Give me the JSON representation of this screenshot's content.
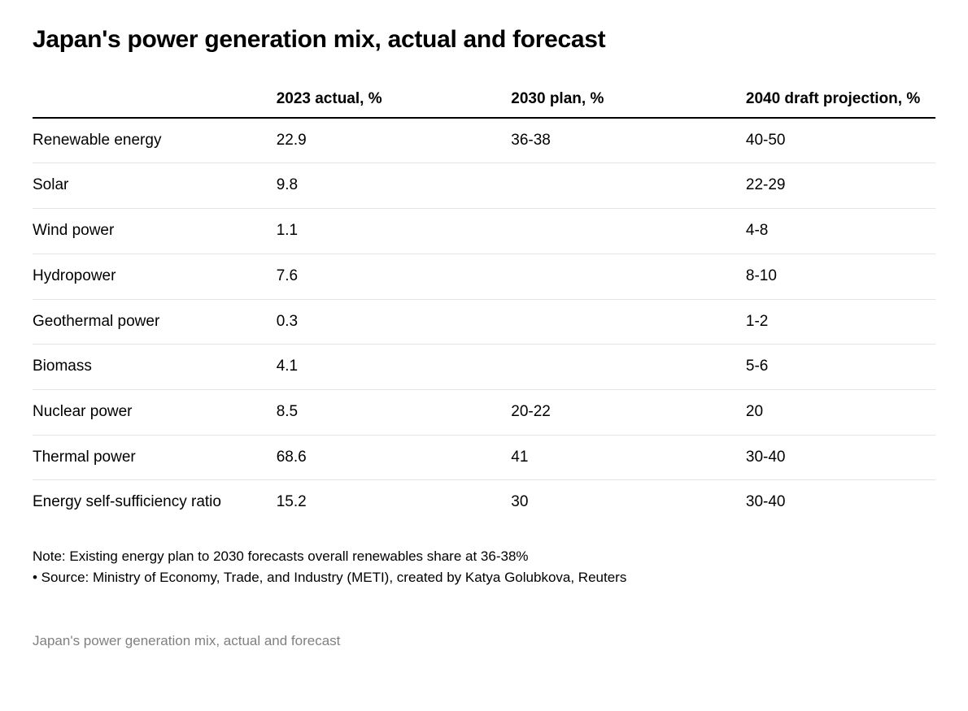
{
  "title": "Japan's power generation mix, actual and forecast",
  "table": {
    "type": "table",
    "background_color": "#ffffff",
    "text_color": "#000000",
    "header_border_color": "#000000",
    "row_border_color": "#e4e4e4",
    "strong_row_border_color": "#cfcfcf",
    "title_fontsize": 30,
    "header_fontsize": 19,
    "cell_fontsize": 19,
    "column_widths_pct": [
      27,
      26,
      26,
      21
    ],
    "columns": [
      "",
      "2023 actual, %",
      "2030 plan, %",
      "2040 draft projection, %"
    ],
    "rows": [
      {
        "label": "Renewable energy",
        "c1": "22.9",
        "c2": "36-38",
        "c3": "40-50"
      },
      {
        "label": "Solar",
        "c1": "9.8",
        "c2": "",
        "c3": "22-29"
      },
      {
        "label": "Wind power",
        "c1": "1.1",
        "c2": "",
        "c3": "4-8"
      },
      {
        "label": "Hydropower",
        "c1": "7.6",
        "c2": "",
        "c3": "8-10"
      },
      {
        "label": "Geothermal power",
        "c1": "0.3",
        "c2": "",
        "c3": "1-2"
      },
      {
        "label": "Biomass",
        "c1": "4.1",
        "c2": "",
        "c3": "5-6"
      },
      {
        "label": "Nuclear power",
        "c1": "8.5",
        "c2": "20-22",
        "c3": "20"
      },
      {
        "label": "Thermal power",
        "c1": "68.6",
        "c2": "41",
        "c3": "30-40"
      },
      {
        "label": "Energy self-sufficiency ratio",
        "c1": "15.2",
        "c2": "30",
        "c3": "30-40"
      }
    ]
  },
  "footnotes": {
    "note": "Note: Existing energy plan to 2030 forecasts overall renewables share at 36-38%",
    "source": "• Source: Ministry of Economy, Trade, and Industry (METI), created by Katya Golubkova, Reuters",
    "fontsize": 17,
    "color": "#000000"
  },
  "caption": {
    "text": "Japan's power generation mix, actual and forecast",
    "fontsize": 17,
    "color": "#808080"
  }
}
